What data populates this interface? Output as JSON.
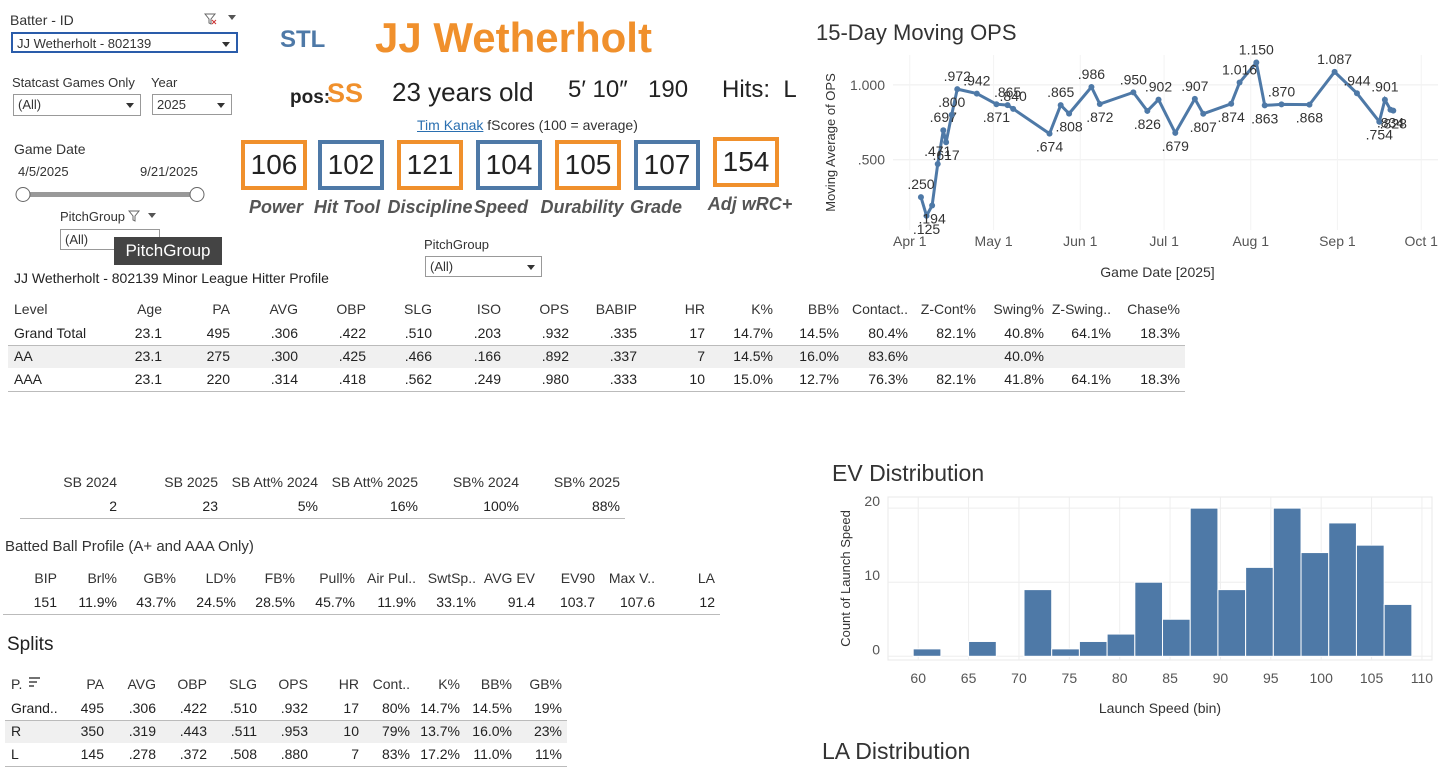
{
  "filters": {
    "batter": {
      "label": "Batter - ID",
      "value": "JJ Wetherholt - 802139"
    },
    "statcast": {
      "label": "Statcast Games Only",
      "value": "(All)"
    },
    "year": {
      "label": "Year",
      "value": "2025"
    },
    "game_date": {
      "label": "Game Date",
      "start": "4/5/2025",
      "end": "9/21/2025"
    },
    "pitch_group": {
      "label": "PitchGroup",
      "value": "(All)",
      "tooltip": "PitchGroup"
    },
    "pitch_group_2": {
      "label": "PitchGroup",
      "value": "(All)"
    }
  },
  "header": {
    "team": "STL",
    "name": "JJ Wetherholt",
    "pos_label": "pos:",
    "pos": "SS",
    "age": "23 years old",
    "height": "5′ 10″",
    "weight": "190",
    "hits": "Hits:  L"
  },
  "fscores": {
    "author": "Tim Kanak",
    "caption": "fScores (100 = average)",
    "items": [
      {
        "value": 106,
        "label": "Power",
        "color": "#f0902c"
      },
      {
        "value": 102,
        "label": "Hit Tool",
        "color": "#4e79a7"
      },
      {
        "value": 121,
        "label": "Discipline",
        "color": "#f0902c"
      },
      {
        "value": 104,
        "label": "Speed",
        "color": "#4e79a7"
      },
      {
        "value": 105,
        "label": "Durability",
        "color": "#f0902c"
      },
      {
        "value": 107,
        "label": "Grade",
        "color": "#4e79a7"
      },
      {
        "value": 154,
        "label": "Adj wRC+",
        "color": "#f0902c"
      }
    ]
  },
  "profile_table": {
    "title": "JJ Wetherholt - 802139 Minor League Hitter Profile",
    "columns": [
      "Level",
      "Age",
      "PA",
      "AVG",
      "OBP",
      "SLG",
      "ISO",
      "OPS",
      "BABIP",
      "HR",
      "K%",
      "BB%",
      "Contact..",
      "Z-Cont%",
      "Swing%",
      "Z-Swing..",
      "Chase%"
    ],
    "rows": [
      [
        "Grand Total",
        "23.1",
        "495",
        ".306",
        ".422",
        ".510",
        ".203",
        ".932",
        ".335",
        "17",
        "14.7%",
        "14.5%",
        "80.4%",
        "82.1%",
        "40.8%",
        "64.1%",
        "18.3%"
      ],
      [
        "AA",
        "23.1",
        "275",
        ".300",
        ".425",
        ".466",
        ".166",
        ".892",
        ".337",
        "7",
        "14.5%",
        "16.0%",
        "83.6%",
        null,
        "40.0%",
        null,
        null
      ],
      [
        "AAA",
        "23.1",
        "220",
        ".314",
        ".418",
        ".562",
        ".249",
        ".980",
        ".333",
        "10",
        "15.0%",
        "12.7%",
        "76.3%",
        "82.1%",
        "41.8%",
        "64.1%",
        "18.3%"
      ]
    ]
  },
  "sb_table": {
    "columns": [
      "SB 2024",
      "SB 2025",
      "SB Att% 2024",
      "SB Att% 2025",
      "SB% 2024",
      "SB% 2025"
    ],
    "rows": [
      [
        "2",
        "23",
        "5%",
        "16%",
        "100%",
        "88%"
      ]
    ]
  },
  "batted_ball": {
    "title": "Batted Ball Profile (A+ and AAA Only)",
    "columns": [
      "BIP",
      "Brl%",
      "GB%",
      "LD%",
      "FB%",
      "Pull%",
      "Air Pul..",
      "SwtSp..",
      "AVG EV",
      "EV90",
      "Max V..",
      "LA"
    ],
    "rows": [
      [
        "151",
        "11.9%",
        "43.7%",
        "24.5%",
        "28.5%",
        "45.7%",
        "11.9%",
        "33.1%",
        "91.4",
        "103.7",
        "107.6",
        "12"
      ]
    ]
  },
  "splits": {
    "title": "Splits",
    "columns": [
      "P.",
      "PA",
      "AVG",
      "OBP",
      "SLG",
      "OPS",
      "HR",
      "Cont..",
      "K%",
      "BB%",
      "GB%"
    ],
    "rows": [
      [
        "Grand..",
        "495",
        ".306",
        ".422",
        ".510",
        ".932",
        "17",
        "80%",
        "14.7%",
        "14.5%",
        "19%"
      ],
      [
        "R",
        "350",
        ".319",
        ".443",
        ".511",
        ".953",
        "10",
        "79%",
        "13.7%",
        "16.0%",
        "23%"
      ],
      [
        "L",
        "145",
        ".278",
        ".372",
        ".508",
        ".880",
        "7",
        "83%",
        "17.2%",
        "11.0%",
        "11%"
      ]
    ]
  },
  "la_distribution": {
    "title": "LA Distribution"
  },
  "chart_data": [
    {
      "type": "line",
      "title": "15-Day Moving OPS",
      "x_label": "Game Date [2025]",
      "y_label": "Moving Average of OPS",
      "color": "#4e79a7",
      "grid": true,
      "x": [
        "2025-04-05",
        "2025-04-07",
        "2025-04-09",
        "2025-04-11",
        "2025-04-13",
        "2025-04-14",
        "2025-04-16",
        "2025-04-18",
        "2025-04-25",
        "2025-05-02",
        "2025-05-06",
        "2025-05-08",
        "2025-05-21",
        "2025-05-25",
        "2025-05-28",
        "2025-06-05",
        "2025-06-08",
        "2025-06-20",
        "2025-06-25",
        "2025-06-29",
        "2025-07-05",
        "2025-07-12",
        "2025-07-15",
        "2025-07-25",
        "2025-07-28",
        "2025-08-03",
        "2025-08-06",
        "2025-08-12",
        "2025-08-22",
        "2025-08-31",
        "2025-09-08",
        "2025-09-16",
        "2025-09-18",
        "2025-09-20",
        "2025-09-21"
      ],
      "values": [
        0.25,
        0.125,
        0.194,
        0.471,
        0.697,
        0.617,
        0.8,
        0.972,
        0.942,
        0.871,
        0.865,
        0.84,
        0.674,
        0.865,
        0.808,
        0.986,
        0.872,
        0.95,
        0.826,
        0.902,
        0.679,
        0.907,
        0.807,
        0.874,
        1.016,
        1.15,
        0.863,
        0.87,
        0.868,
        1.087,
        0.944,
        0.754,
        0.901,
        0.834,
        0.828
      ],
      "value_labels": [
        ".250",
        ".125",
        ".194",
        ".471",
        ".697",
        ".617",
        ".800",
        ".972",
        ".942",
        ".871",
        ".865",
        ".840",
        ".674",
        ".865",
        ".808",
        ".986",
        ".872",
        ".950",
        ".826",
        ".902",
        ".679",
        ".907",
        ".807",
        ".874",
        "1.016",
        "1.150",
        ".863",
        ".870",
        ".868",
        "1.087",
        ".944",
        ".754",
        ".901",
        ".834",
        ".828"
      ],
      "xlim": [
        "2025-03-26",
        "2025-10-07"
      ],
      "xticks": [
        {
          "value": "2025-04-01",
          "label": "Apr 1"
        },
        {
          "value": "2025-05-01",
          "label": "May 1"
        },
        {
          "value": "2025-06-01",
          "label": "Jun 1"
        },
        {
          "value": "2025-07-01",
          "label": "Jul 1"
        },
        {
          "value": "2025-08-01",
          "label": "Aug 1"
        },
        {
          "value": "2025-09-01",
          "label": "Sep 1"
        },
        {
          "value": "2025-10-01",
          "label": "Oct 1"
        }
      ],
      "ylim": [
        0.03,
        1.2
      ],
      "yticks": [
        {
          "value": 0.5,
          "label": ".500"
        },
        {
          "value": 1,
          "label": "1.000"
        }
      ]
    },
    {
      "type": "histogram",
      "title": "EV Distribution",
      "x_label": "Launch Speed (bin)",
      "y_label": "Count of Launch Speed",
      "color": "#4e79a7",
      "grid": true,
      "bins": [
        59.5,
        62.25,
        65,
        67.75,
        70.5,
        73.25,
        76,
        78.75,
        81.5,
        84.25,
        87,
        89.75,
        92.5,
        95.25,
        98,
        100.75,
        103.5,
        106.25,
        109
      ],
      "values": [
        1,
        0,
        2,
        0,
        9,
        1,
        2,
        3,
        10,
        5,
        20,
        9,
        12,
        20,
        14,
        18,
        15,
        7
      ],
      "xlim": [
        57,
        111
      ],
      "xticks": [
        60,
        65,
        70,
        75,
        80,
        85,
        90,
        95,
        100,
        105,
        110
      ],
      "ylim": [
        -0.5,
        21.5
      ],
      "yticks": [
        0,
        10,
        20
      ]
    }
  ]
}
